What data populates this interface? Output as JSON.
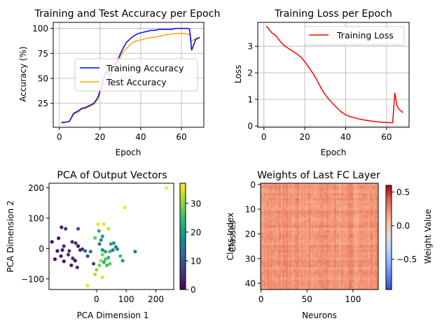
{
  "chart_data": [
    {
      "type": "line",
      "title": "Training and Test Accuracy per Epoch",
      "xlabel": "Epoch",
      "ylabel": "Accuracy (%)",
      "xlim": [
        -3,
        71
      ],
      "ylim": [
        1,
        106
      ],
      "xticks": [
        0,
        20,
        40,
        60
      ],
      "yticks": [
        25,
        50,
        75,
        100
      ],
      "grid": true,
      "legend": "center-right",
      "series": [
        {
          "name": "Training Accuracy",
          "color": "#0000ff",
          "x": [
            1,
            3,
            5,
            7,
            9,
            11,
            13,
            15,
            17,
            19,
            21,
            23,
            25,
            27,
            29,
            31,
            33,
            35,
            37,
            39,
            41,
            43,
            45,
            47,
            49,
            51,
            53,
            55,
            57,
            59,
            61,
            63,
            64,
            65,
            67,
            69
          ],
          "y": [
            6,
            6,
            7,
            15,
            17,
            20,
            21,
            23,
            25,
            31,
            44,
            57,
            53,
            62,
            70,
            79,
            86,
            90,
            93,
            95,
            96,
            97,
            98,
            98,
            99,
            99,
            99,
            99,
            100,
            100,
            100,
            100,
            99,
            78,
            89,
            91
          ]
        },
        {
          "name": "Test Accuracy",
          "color": "#ffa500",
          "x": [
            1,
            3,
            5,
            7,
            9,
            11,
            13,
            15,
            17,
            19,
            21,
            23,
            25,
            27,
            29,
            31,
            33,
            35,
            37,
            39,
            41,
            43,
            45,
            47,
            49,
            51,
            53,
            55,
            57,
            59,
            61,
            63,
            64,
            65,
            67,
            69
          ],
          "y": [
            5,
            6,
            7,
            14,
            16,
            19,
            20,
            22,
            24,
            29,
            42,
            55,
            51,
            60,
            67,
            76,
            80,
            84,
            87,
            88,
            89,
            90,
            91,
            91,
            92,
            93,
            94,
            94,
            95,
            95,
            95,
            94,
            94,
            87,
            90,
            91
          ]
        }
      ]
    },
    {
      "type": "line",
      "title": "Training Loss per Epoch",
      "xlabel": "Epoch",
      "ylabel": "Loss",
      "xlim": [
        -3,
        71
      ],
      "ylim": [
        -0.05,
        3.9
      ],
      "xticks": [
        0,
        20,
        40,
        60
      ],
      "yticks": [
        0,
        1,
        2,
        3
      ],
      "grid": true,
      "legend": "top-right",
      "series": [
        {
          "name": "Training Loss",
          "color": "#ff0000",
          "x": [
            1,
            2,
            3,
            4,
            5,
            6,
            8,
            10,
            12,
            14,
            16,
            18,
            20,
            22,
            24,
            26,
            28,
            30,
            32,
            34,
            36,
            38,
            40,
            42,
            44,
            46,
            48,
            50,
            52,
            54,
            56,
            58,
            60,
            62,
            63,
            64,
            65,
            66,
            67,
            68
          ],
          "y": [
            3.75,
            3.7,
            3.58,
            3.5,
            3.45,
            3.38,
            3.18,
            3.02,
            2.92,
            2.82,
            2.72,
            2.6,
            2.42,
            2.2,
            1.98,
            1.72,
            1.42,
            1.18,
            0.98,
            0.82,
            0.66,
            0.52,
            0.42,
            0.36,
            0.31,
            0.27,
            0.24,
            0.21,
            0.19,
            0.17,
            0.15,
            0.14,
            0.13,
            0.12,
            0.13,
            1.25,
            0.78,
            0.63,
            0.57,
            0.5
          ]
        }
      ]
    },
    {
      "type": "scatter",
      "title": "PCA of Output Vectors",
      "xlabel": "PCA Dimension 1",
      "ylabel": "PCA Dimension 2",
      "xlim": [
        -160,
        260
      ],
      "ylim": [
        -135,
        215
      ],
      "xticks": [
        0,
        100,
        200
      ],
      "yticks": [
        -100,
        0,
        100,
        200
      ],
      "grid": false,
      "colorbar": {
        "label": "Class Index",
        "ticks": [
          0,
          10,
          20,
          30
        ],
        "range": [
          0,
          37
        ],
        "colormap": "viridis"
      },
      "points": [
        [
          -128,
          34,
          3
        ],
        [
          -110,
          8,
          5
        ],
        [
          -62,
          65,
          10
        ],
        [
          -118,
          70,
          2
        ],
        [
          -104,
          65,
          6
        ],
        [
          -150,
          22,
          1
        ],
        [
          -132,
          -8,
          2
        ],
        [
          -115,
          -5,
          3
        ],
        [
          -92,
          -8,
          7
        ],
        [
          -82,
          22,
          4
        ],
        [
          -70,
          18,
          6
        ],
        [
          -62,
          8,
          2
        ],
        [
          -55,
          -5,
          4
        ],
        [
          -48,
          -2,
          5
        ],
        [
          -120,
          -25,
          3
        ],
        [
          -140,
          -35,
          2
        ],
        [
          -95,
          -20,
          6
        ],
        [
          -80,
          -32,
          4
        ],
        [
          -72,
          -40,
          2
        ],
        [
          -110,
          -42,
          1
        ],
        [
          -85,
          -55,
          3
        ],
        [
          -65,
          -62,
          5
        ],
        [
          -38,
          -8,
          12
        ],
        [
          -30,
          -25,
          9
        ],
        [
          -10,
          -50,
          8
        ],
        [
          -20,
          -10,
          14
        ],
        [
          15,
          28,
          17
        ],
        [
          20,
          40,
          20
        ],
        [
          8,
          58,
          22
        ],
        [
          40,
          65,
          34
        ],
        [
          25,
          80,
          36
        ],
        [
          5,
          80,
          36
        ],
        [
          -5,
          35,
          28
        ],
        [
          10,
          15,
          16
        ],
        [
          20,
          -5,
          18
        ],
        [
          30,
          -10,
          21
        ],
        [
          45,
          -10,
          24
        ],
        [
          55,
          -5,
          15
        ],
        [
          65,
          5,
          16
        ],
        [
          70,
          -2,
          17
        ],
        [
          58,
          18,
          19
        ],
        [
          48,
          15,
          22
        ],
        [
          80,
          -25,
          26
        ],
        [
          40,
          -30,
          24
        ],
        [
          30,
          -35,
          27
        ],
        [
          20,
          -20,
          30
        ],
        [
          15,
          -40,
          32
        ],
        [
          25,
          -45,
          23
        ],
        [
          35,
          -55,
          25
        ],
        [
          45,
          -50,
          28
        ],
        [
          10,
          -55,
          29
        ],
        [
          0,
          -70,
          31
        ],
        [
          -5,
          -85,
          33
        ],
        [
          20,
          -95,
          35
        ],
        [
          -30,
          -122,
          36
        ],
        [
          95,
          135,
          36
        ],
        [
          130,
          -10,
          16
        ],
        [
          88,
          -40,
          20
        ],
        [
          235,
          200,
          37
        ]
      ]
    },
    {
      "type": "heatmap",
      "title": "Weights of Last FC Layer",
      "xlabel": "Neurons",
      "ylabel": "Classes",
      "rows": 43,
      "cols": 128,
      "xticks": [
        0,
        50,
        100
      ],
      "yticks": [
        0,
        10,
        20,
        30,
        40
      ],
      "colorbar": {
        "label": "Weight Value",
        "ticks": [
          0.5,
          0.0,
          -0.5
        ],
        "range": [
          -0.95,
          0.6
        ],
        "colormap": "coolwarm"
      }
    }
  ]
}
